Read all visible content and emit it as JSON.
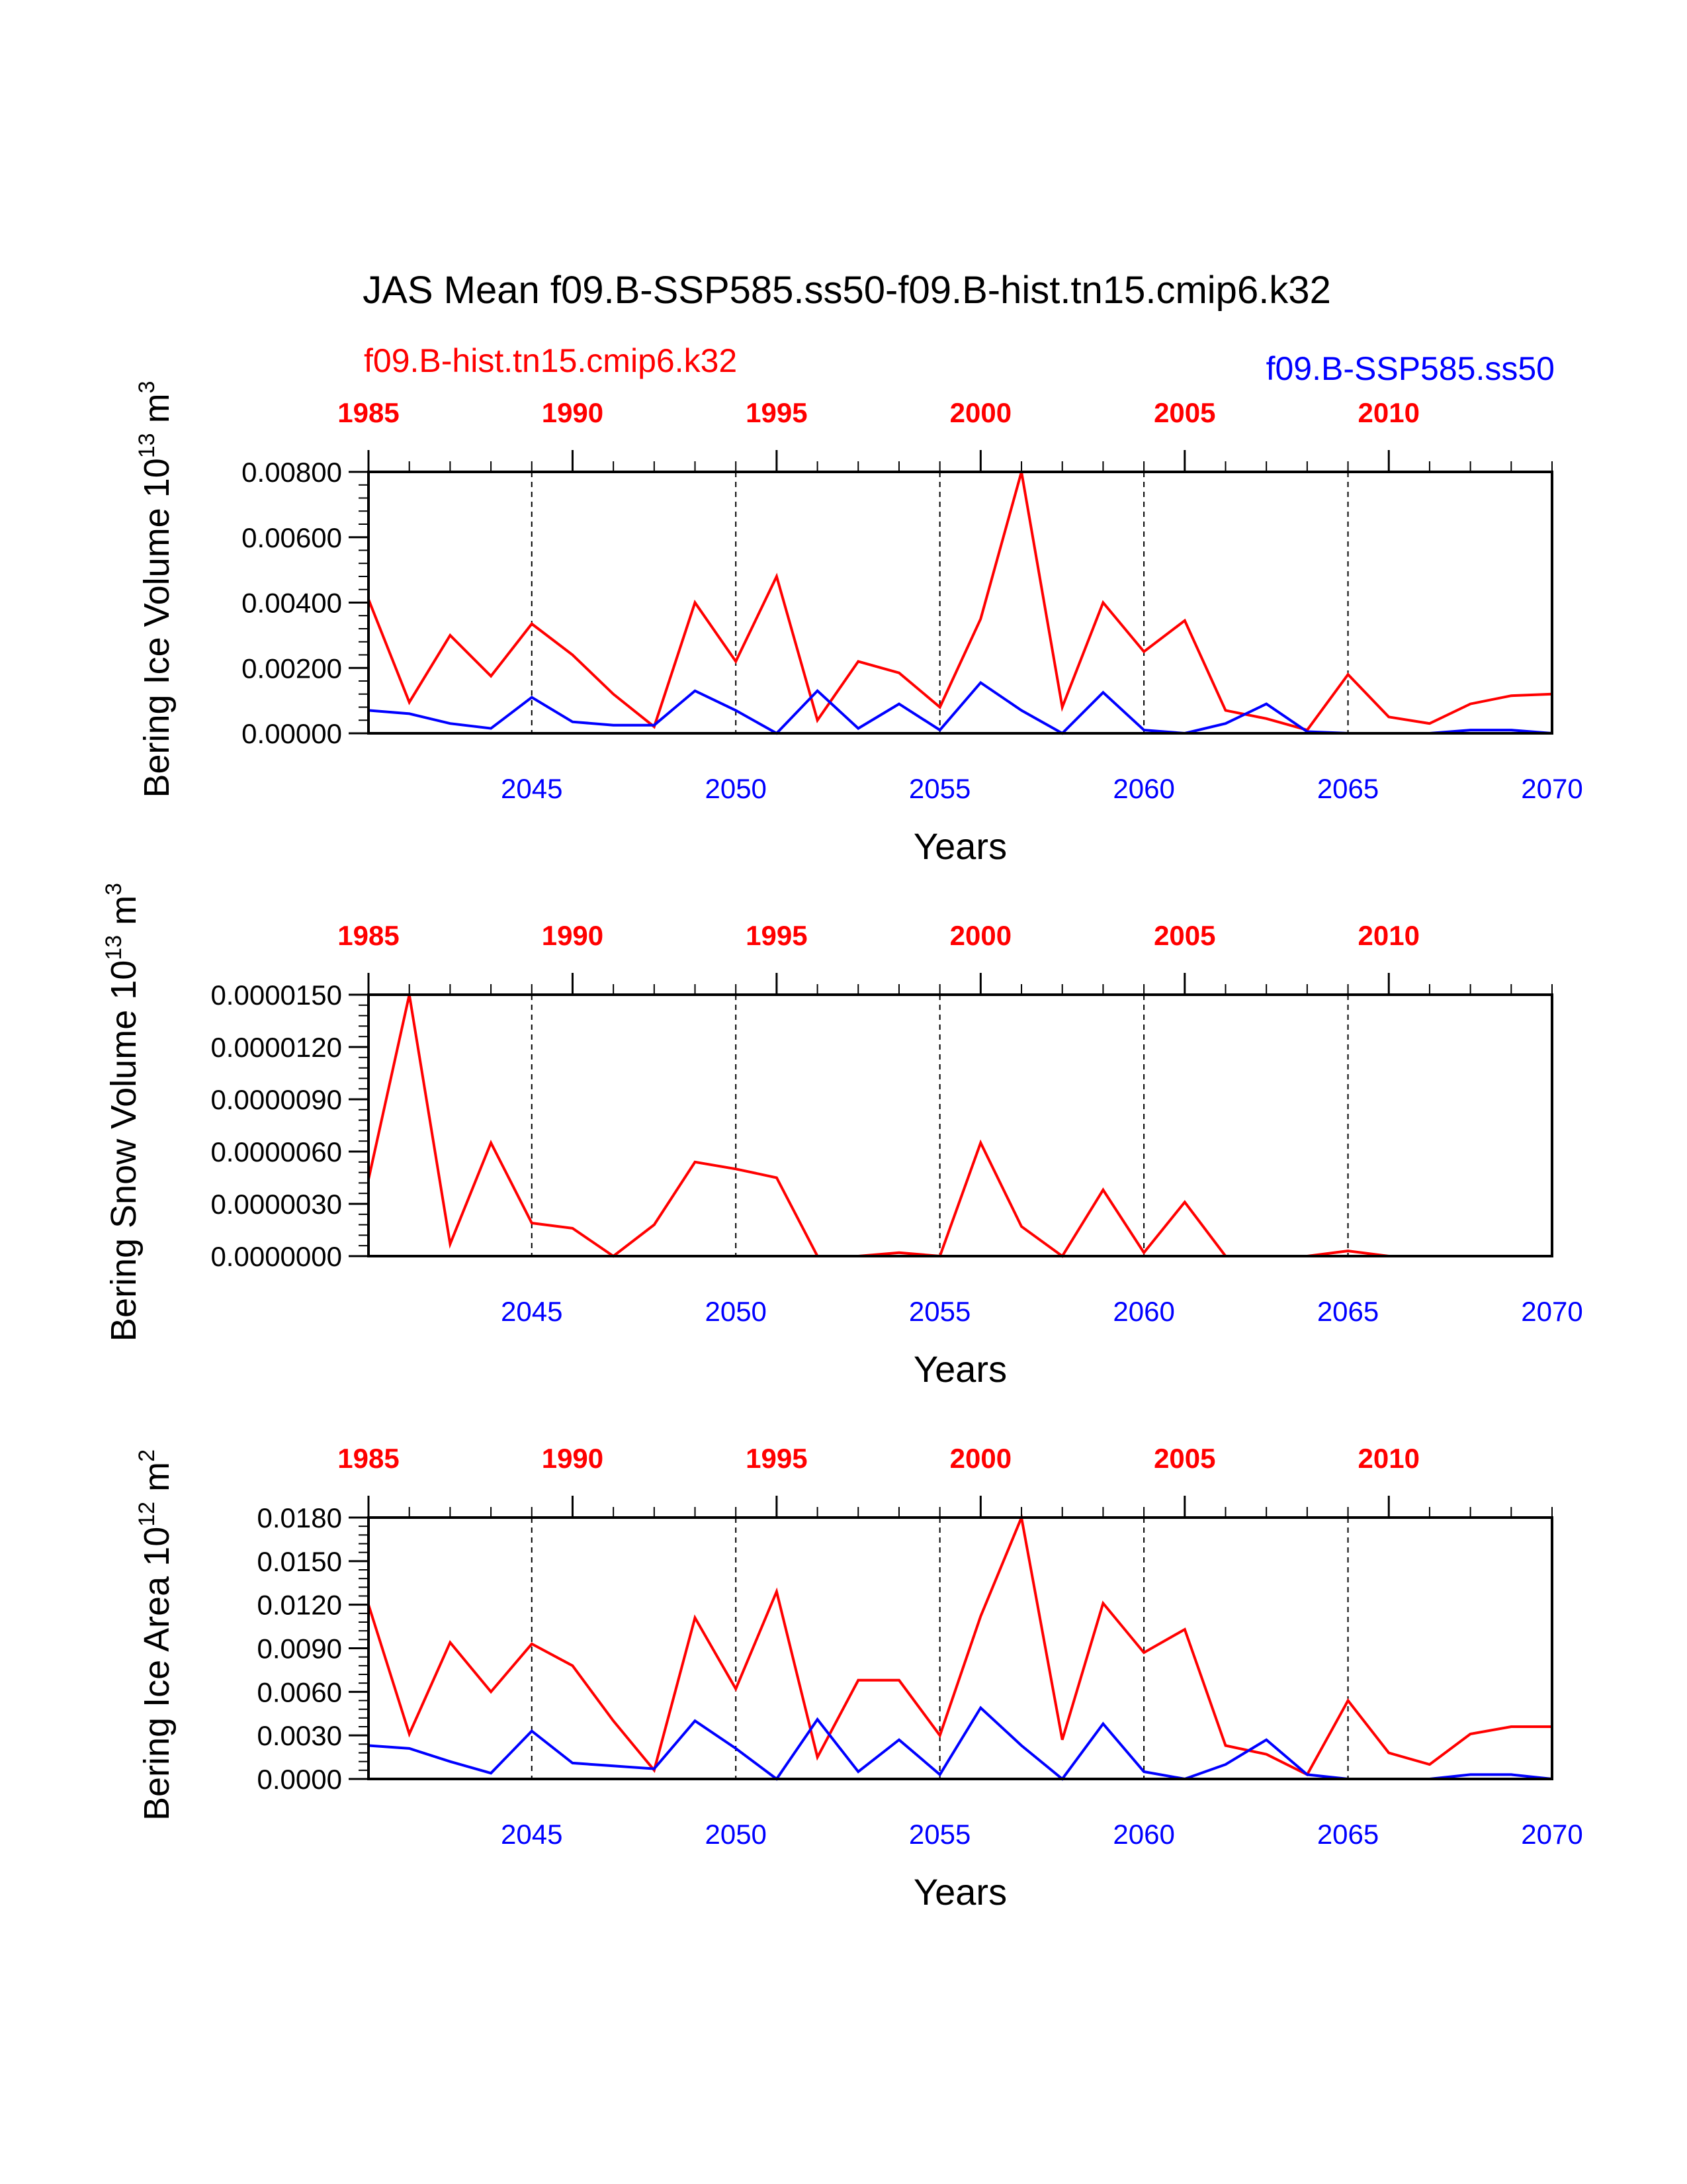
{
  "figure": {
    "title": "JAS Mean f09.B-SSP585.ss50-f09.B-hist.tn15.cmip6.k32",
    "legend_left": "f09.B-hist.tn15.cmip6.k32",
    "legend_right": "f09.B-SSP585.ss50",
    "colors": {
      "hist": "#ff0000",
      "ssp": "#0000ff",
      "text": "#000000"
    }
  },
  "chart_data": [
    {
      "type": "line",
      "ylabel": "Bering Ice Volume 10",
      "yexp": "13",
      "yunit": " m",
      "yunit_exp": "3",
      "xlabel": "Years",
      "ylim": [
        0,
        0.008
      ],
      "yticks": [
        "0.00000",
        "0.00200",
        "0.00400",
        "0.00600",
        "0.00800"
      ],
      "x_bottom": [
        2041,
        2042,
        2043,
        2044,
        2045,
        2046,
        2047,
        2048,
        2049,
        2050,
        2051,
        2052,
        2053,
        2054,
        2055,
        2056,
        2057,
        2058,
        2059,
        2060,
        2061,
        2062,
        2063,
        2064,
        2065,
        2066,
        2067,
        2068,
        2069,
        2070
      ],
      "bottom_ticks": [
        "2045",
        "2050",
        "2055",
        "2060",
        "2065",
        "2070"
      ],
      "top_ticks": [
        "1985",
        "1990",
        "1995",
        "2000",
        "2005",
        "2010"
      ],
      "series": [
        {
          "name": "f09.B-hist.tn15.cmip6.k32",
          "color": "#ff0000",
          "values": [
            0.0041,
            0.00095,
            0.003,
            0.00175,
            0.00335,
            0.0024,
            0.0012,
            0.0002,
            0.004,
            0.0022,
            0.0048,
            0.0004,
            0.0022,
            0.00185,
            0.0008,
            0.0035,
            0.008,
            0.0008,
            0.004,
            0.0025,
            0.00345,
            0.0007,
            0.00045,
            0.0001,
            0.0018,
            0.0005,
            0.0003,
            0.0009,
            0.00115,
            0.0012
          ]
        },
        {
          "name": "f09.B-SSP585.ss50",
          "color": "#0000ff",
          "values": [
            0.0007,
            0.0006,
            0.0003,
            0.00015,
            0.0011,
            0.00035,
            0.00025,
            0.00025,
            0.0013,
            0.0007,
            0.0,
            0.0013,
            0.00015,
            0.0009,
            0.0001,
            0.00155,
            0.0007,
            0.0,
            0.00125,
            0.0001,
            0.0,
            0.0003,
            0.0009,
            5e-05,
            0.0,
            0.0,
            0.0,
            0.0001,
            0.0001,
            0.0
          ]
        }
      ]
    },
    {
      "type": "line",
      "ylabel": "Bering Snow Volume 10",
      "yexp": "13",
      "yunit": " m",
      "yunit_exp": "3",
      "xlabel": "Years",
      "ylim": [
        0,
        1.5e-05
      ],
      "yticks": [
        "0.0000000",
        "0.0000030",
        "0.0000060",
        "0.0000090",
        "0.0000120",
        "0.0000150"
      ],
      "x_bottom": [
        2041,
        2042,
        2043,
        2044,
        2045,
        2046,
        2047,
        2048,
        2049,
        2050,
        2051,
        2052,
        2053,
        2054,
        2055,
        2056,
        2057,
        2058,
        2059,
        2060,
        2061,
        2062,
        2063,
        2064,
        2065,
        2066,
        2067,
        2068,
        2069,
        2070
      ],
      "bottom_ticks": [
        "2045",
        "2050",
        "2055",
        "2060",
        "2065",
        "2070"
      ],
      "top_ticks": [
        "1985",
        "1990",
        "1995",
        "2000",
        "2005",
        "2010"
      ],
      "series": [
        {
          "name": "f09.B-hist.tn15.cmip6.k32",
          "color": "#ff0000",
          "values": [
            4.4e-06,
            1.5e-05,
            7e-07,
            6.5e-06,
            1.9e-06,
            1.6e-06,
            0.0,
            1.8e-06,
            5.4e-06,
            5e-06,
            4.5e-06,
            0.0,
            0.0,
            2e-07,
            0.0,
            6.5e-06,
            1.7e-06,
            0.0,
            3.8e-06,
            2e-07,
            3.1e-06,
            0.0,
            0.0,
            0.0,
            3e-07,
            0.0,
            0.0,
            0.0,
            0.0,
            0.0
          ]
        },
        {
          "name": "f09.B-SSP585.ss50",
          "color": "#0000ff",
          "values": [
            0,
            0,
            0,
            0,
            0,
            0,
            0,
            0,
            0,
            0,
            0,
            0,
            0,
            0,
            0,
            0,
            0,
            0,
            0,
            0,
            0,
            0,
            0,
            0,
            0,
            0,
            0,
            0,
            0,
            0
          ]
        }
      ]
    },
    {
      "type": "line",
      "ylabel": "Bering Ice Area 10",
      "yexp": "12",
      "yunit": " m",
      "yunit_exp": "2",
      "xlabel": "Years",
      "ylim": [
        0,
        0.018
      ],
      "yticks": [
        "0.0000",
        "0.0030",
        "0.0060",
        "0.0090",
        "0.0120",
        "0.0150",
        "0.0180"
      ],
      "x_bottom": [
        2041,
        2042,
        2043,
        2044,
        2045,
        2046,
        2047,
        2048,
        2049,
        2050,
        2051,
        2052,
        2053,
        2054,
        2055,
        2056,
        2057,
        2058,
        2059,
        2060,
        2061,
        2062,
        2063,
        2064,
        2065,
        2066,
        2067,
        2068,
        2069,
        2070
      ],
      "bottom_ticks": [
        "2045",
        "2050",
        "2055",
        "2060",
        "2065",
        "2070"
      ],
      "top_ticks": [
        "1985",
        "1990",
        "1995",
        "2000",
        "2005",
        "2010"
      ],
      "series": [
        {
          "name": "f09.B-hist.tn15.cmip6.k32",
          "color": "#ff0000",
          "values": [
            0.012,
            0.0031,
            0.0094,
            0.006,
            0.0093,
            0.0078,
            0.004,
            0.0006,
            0.0111,
            0.0062,
            0.0129,
            0.0015,
            0.0068,
            0.0068,
            0.003,
            0.0112,
            0.018,
            0.0027,
            0.0121,
            0.0087,
            0.0103,
            0.0023,
            0.0017,
            0.0003,
            0.0054,
            0.0018,
            0.001,
            0.0031,
            0.0036,
            0.0036
          ]
        },
        {
          "name": "f09.B-SSP585.ss50",
          "color": "#0000ff",
          "values": [
            0.0023,
            0.0021,
            0.0012,
            0.0004,
            0.0033,
            0.0011,
            0.0009,
            0.0007,
            0.004,
            0.0021,
            0.0,
            0.0041,
            0.0005,
            0.0027,
            0.0003,
            0.0049,
            0.0023,
            0.0,
            0.0038,
            0.0005,
            0.0,
            0.001,
            0.0027,
            0.0003,
            0.0,
            0.0,
            0.0,
            0.0003,
            0.0003,
            0.0
          ]
        }
      ]
    }
  ]
}
